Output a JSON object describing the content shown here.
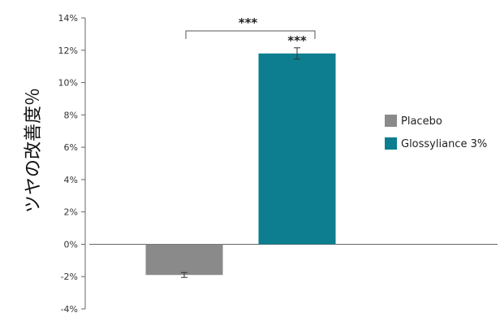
{
  "chart_data": {
    "type": "bar",
    "title": "",
    "xlabel": "",
    "ylabel": "ツヤの改善度％",
    "ylim": [
      -4,
      14
    ],
    "ytick_step": 2,
    "tick_suffix": "%",
    "grid": false,
    "legend_position": "right",
    "categories": [
      "Placebo",
      "Glossyliance 3%"
    ],
    "values": [
      -1.9,
      11.8
    ],
    "error": [
      0.15,
      0.35
    ],
    "colors": [
      "#8a8a8a",
      "#0c7e8f"
    ],
    "annotations": {
      "bracket_label": "***",
      "bar_label": "***"
    }
  }
}
